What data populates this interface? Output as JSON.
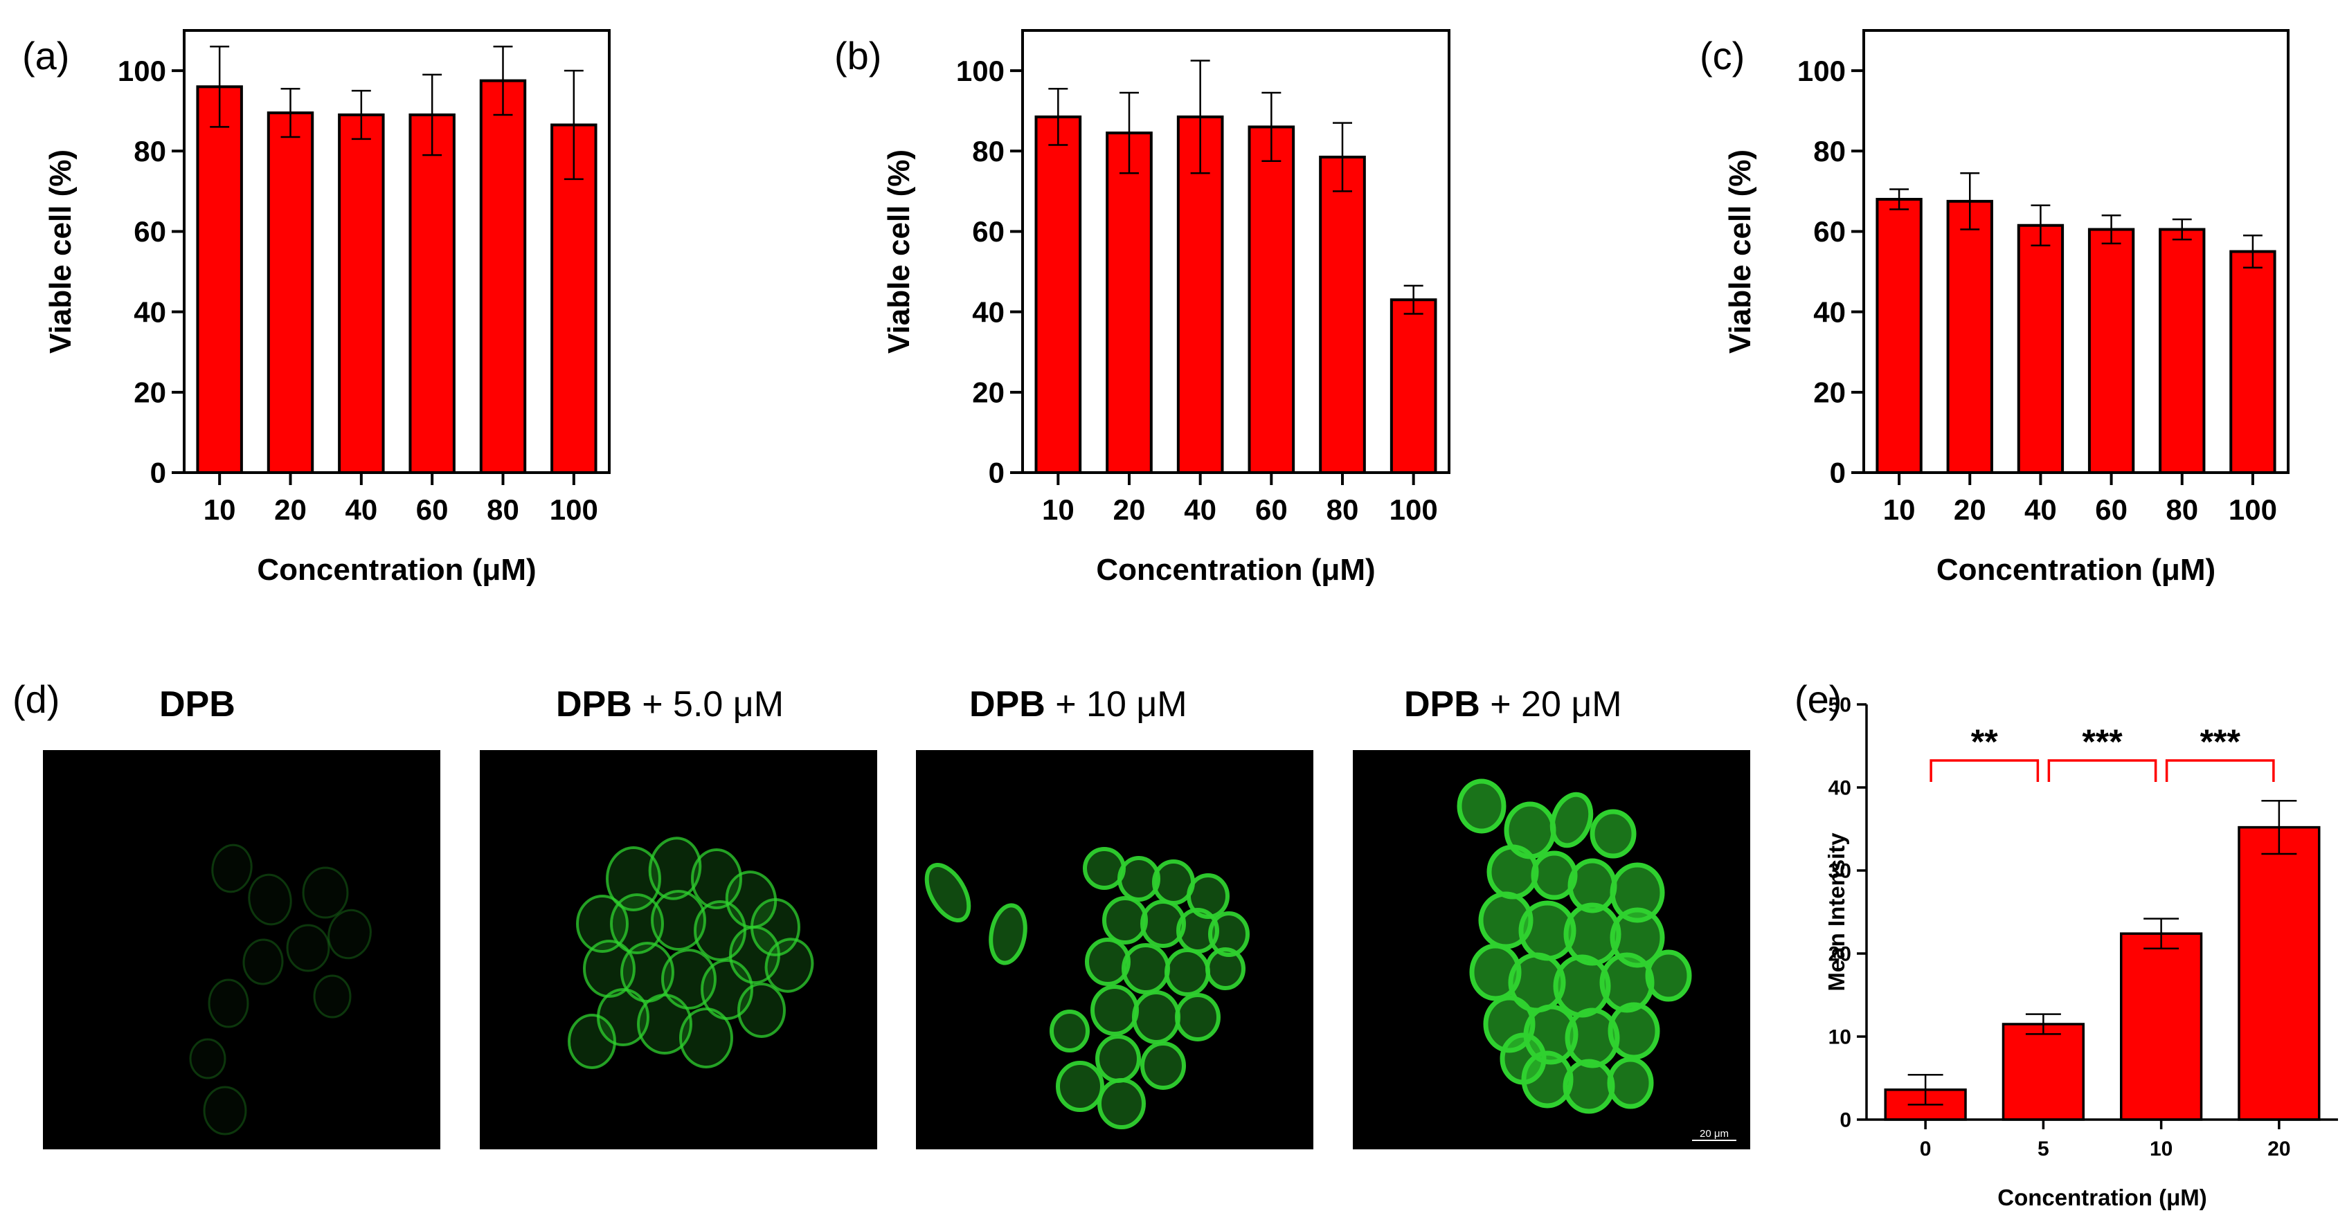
{
  "colors": {
    "bar": "#ff0000",
    "axis": "#000000",
    "micro_bg": "#000000",
    "fluor": "#2fd12f",
    "bracket": "#ff0000"
  },
  "chart_data": [
    {
      "panel": "(a)",
      "type": "bar",
      "categories": [
        "10",
        "20",
        "40",
        "60",
        "80",
        "100"
      ],
      "values": [
        96,
        89.5,
        89,
        89,
        97.5,
        86.5
      ],
      "errors": [
        10,
        6,
        6,
        10,
        8.5,
        13.5
      ],
      "xlabel": "Concentration (μM)",
      "ylabel": "Viable cell (%)",
      "ylim": [
        0,
        110
      ],
      "yticks": [
        "0",
        "20",
        "40",
        "60",
        "80",
        "100"
      ],
      "grid": false
    },
    {
      "panel": "(b)",
      "type": "bar",
      "categories": [
        "10",
        "20",
        "40",
        "60",
        "80",
        "100"
      ],
      "values": [
        88.5,
        84.5,
        88.5,
        86,
        78.5,
        43
      ],
      "errors": [
        7,
        10,
        14,
        8.5,
        8.5,
        3.5
      ],
      "xlabel": "Concentration (μM)",
      "ylabel": "Viable cell (%)",
      "ylim": [
        0,
        110
      ],
      "yticks": [
        "0",
        "20",
        "40",
        "60",
        "80",
        "100"
      ],
      "grid": false
    },
    {
      "panel": "(c)",
      "type": "bar",
      "categories": [
        "10",
        "20",
        "40",
        "60",
        "80",
        "100"
      ],
      "values": [
        68,
        67.5,
        61.5,
        60.5,
        60.5,
        55
      ],
      "errors": [
        2.5,
        7,
        5,
        3.5,
        2.5,
        4
      ],
      "xlabel": "Concentration (μM)",
      "ylabel": "Viable cell (%)",
      "ylim": [
        0,
        110
      ],
      "yticks": [
        "0",
        "20",
        "40",
        "60",
        "80",
        "100"
      ],
      "grid": false
    },
    {
      "panel": "(e)",
      "type": "bar",
      "categories": [
        "0",
        "5",
        "10",
        "20"
      ],
      "values": [
        3.6,
        11.5,
        22.4,
        35.2
      ],
      "errors": [
        1.8,
        1.2,
        1.8,
        3.2
      ],
      "xlabel": "Concentration (μM)",
      "ylabel": "Mean Intensity",
      "ylim": [
        0,
        50
      ],
      "yticks": [
        "0",
        "10",
        "20",
        "30",
        "40",
        "50"
      ],
      "grid": false,
      "significance": [
        "**",
        "***",
        "***"
      ]
    }
  ],
  "micrographs": {
    "panel": "(d)",
    "titles": [
      {
        "bold": "DPB",
        "rest": ""
      },
      {
        "bold": "DPB",
        "rest": " + 5.0 μM"
      },
      {
        "bold": "DPB",
        "rest": " + 10 μM"
      },
      {
        "bold": "DPB",
        "rest": " + 20 μM"
      }
    ],
    "scalebar": "20 μm"
  }
}
